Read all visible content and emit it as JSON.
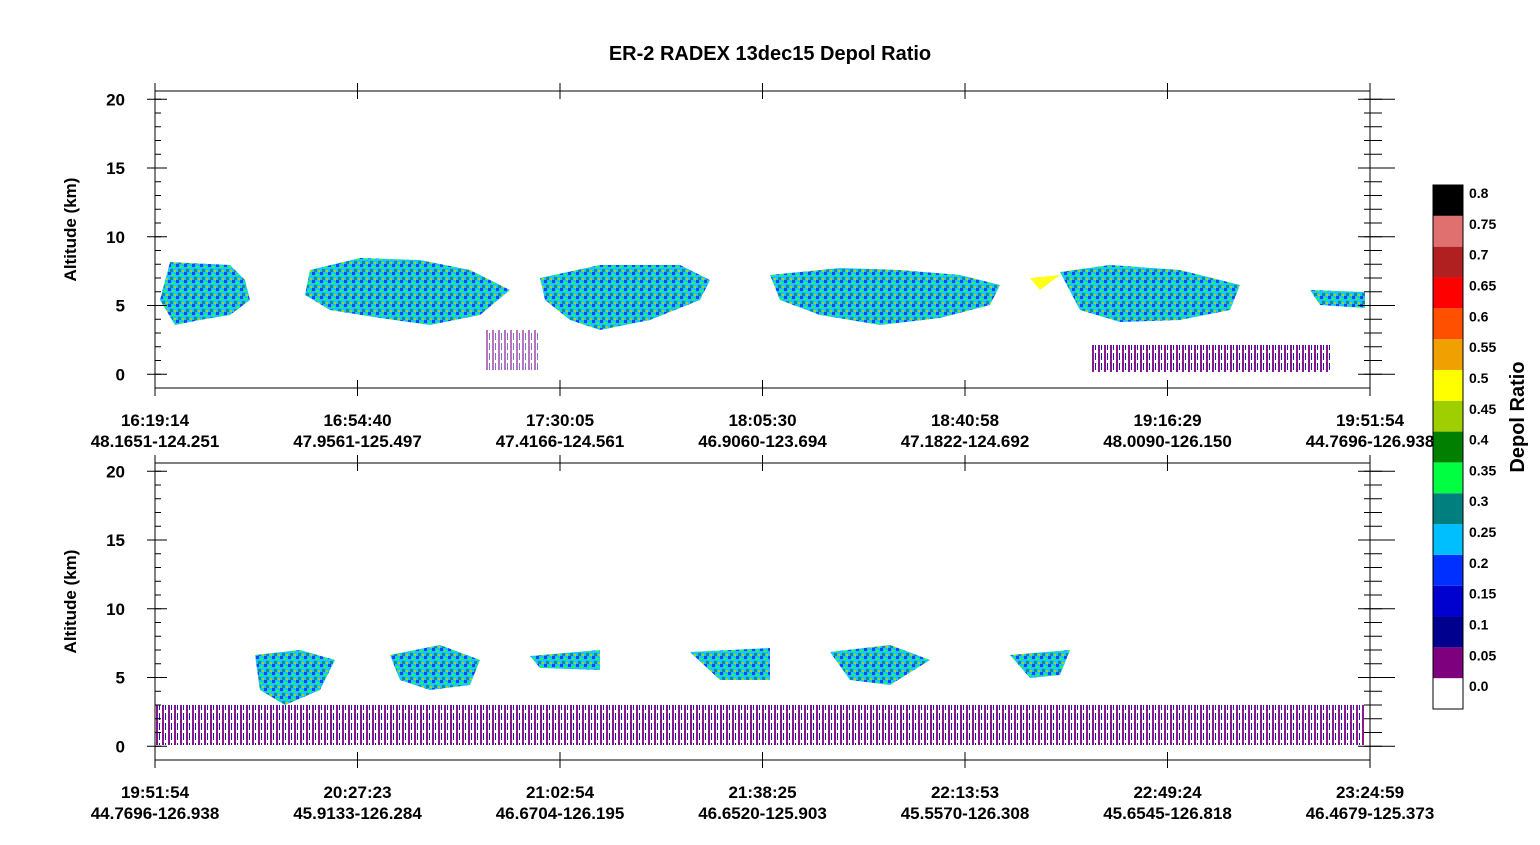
{
  "chart_data": [
    {
      "type": "curtain",
      "title": "ER-2 RADEX 13dec15 Depol Ratio",
      "ylabel": "Altitude (km)",
      "ylim": [
        -1,
        20.6
      ],
      "yticks": [
        0,
        5,
        10,
        15,
        20
      ],
      "xtick_times": [
        "16:19:14",
        "16:54:40",
        "17:30:05",
        "18:05:30",
        "18:40:58",
        "19:16:29",
        "19:51:54"
      ],
      "xtick_locations": [
        "48.1651-124.251",
        "47.9561-125.497",
        "47.4166-124.561",
        "46.9060-123.694",
        "47.1822-124.692",
        "48.0090-126.150",
        "44.7696-126.938"
      ]
    },
    {
      "type": "curtain",
      "ylabel": "Altitude (km)",
      "ylim": [
        -1,
        20.6
      ],
      "yticks": [
        0,
        5,
        10,
        15,
        20
      ],
      "xtick_times": [
        "19:51:54",
        "20:27:23",
        "21:02:54",
        "21:38:25",
        "22:13:53",
        "22:49:24",
        "23:24:59"
      ],
      "xtick_locations": [
        "44.7696-126.938",
        "45.9133-126.284",
        "46.6704-126.195",
        "46.6520-125.903",
        "45.5570-126.308",
        "45.6545-126.818",
        "46.4679-125.373"
      ]
    },
    {
      "type": "colorbar",
      "label": "Depol Ratio",
      "clim": [
        -0.05,
        0.8
      ],
      "ticks": [
        {
          "value": 0,
          "label": "0.0"
        },
        0.05,
        0.1,
        0.15,
        0.2,
        0.25,
        0.3,
        0.35,
        0.4,
        0.45,
        0.5,
        0.55,
        0.6,
        0.65,
        0.7,
        0.75,
        0.8
      ],
      "colors": [
        "#ffffff",
        "#7f007f",
        "#00008f",
        "#0000cf",
        "#0030ff",
        "#00bfff",
        "#007f7f",
        "#00ff40",
        "#007f00",
        "#9fcf00",
        "#ffff00",
        "#f0a000",
        "#ff5000",
        "#ff0000",
        "#b02020",
        "#e07070",
        "#000000"
      ]
    }
  ]
}
